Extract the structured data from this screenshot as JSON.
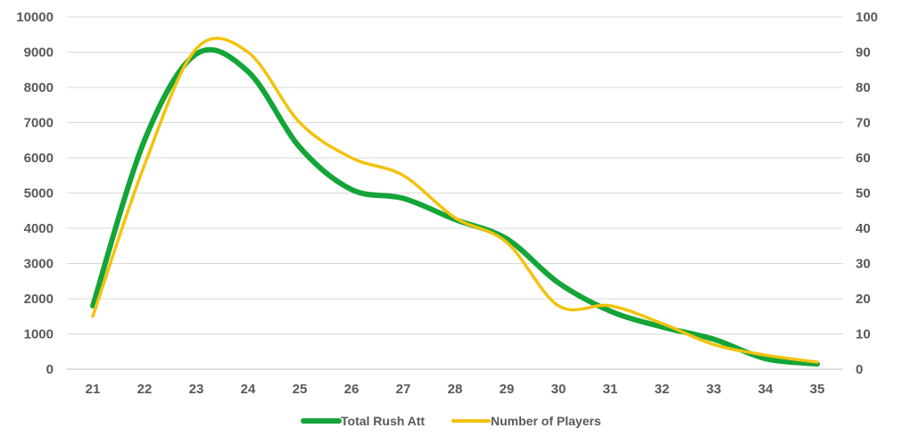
{
  "chart_data": {
    "type": "line",
    "title": "",
    "xlabel": "",
    "ylabel": "",
    "y2label": "",
    "categories": [
      "21",
      "22",
      "23",
      "24",
      "25",
      "26",
      "27",
      "28",
      "29",
      "30",
      "31",
      "32",
      "33",
      "34",
      "35"
    ],
    "ylim": [
      0,
      10000
    ],
    "y_ticks": [
      "0",
      "1000",
      "2000",
      "3000",
      "4000",
      "5000",
      "6000",
      "7000",
      "8000",
      "9000",
      "10000"
    ],
    "y2lim": [
      0,
      100
    ],
    "y2_ticks": [
      "0",
      "10",
      "20",
      "30",
      "40",
      "50",
      "60",
      "70",
      "80",
      "90",
      "100"
    ],
    "grid": true,
    "legend_position": "bottom",
    "series": [
      {
        "name": "Total Rush Att",
        "axis": "left",
        "color": "#13a538",
        "values": [
          1800,
          6500,
          8950,
          8450,
          6300,
          5100,
          4850,
          4250,
          3700,
          2450,
          1650,
          1200,
          850,
          300,
          150
        ]
      },
      {
        "name": "Number of Players",
        "axis": "right",
        "color": "#f4c20d",
        "values": [
          15,
          58,
          91,
          90,
          70,
          60,
          55,
          43,
          36,
          18,
          18,
          13,
          7,
          4,
          2
        ]
      }
    ]
  }
}
